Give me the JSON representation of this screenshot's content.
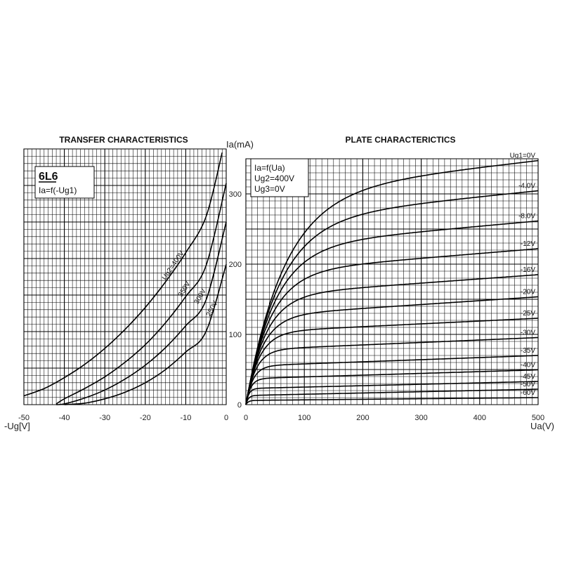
{
  "chart_data": [
    {
      "type": "line",
      "title": "TRANSFER CHARACTERISTICS",
      "xlabel": "-Ug[V]",
      "ylabel": "",
      "xlim": [
        -50,
        0
      ],
      "ylim": [
        0,
        350
      ],
      "x_ticks": [
        "-50",
        "-40",
        "-30",
        "-20",
        "-10",
        "0"
      ],
      "grid": true,
      "info_box": {
        "tube": "6L6",
        "formula": "Ia=f(-Ug1)"
      },
      "series": [
        {
          "name": "Ug2=400V",
          "points": [
            [
              -50,
              12
            ],
            [
              -45,
              22
            ],
            [
              -40,
              37
            ],
            [
              -35,
              55
            ],
            [
              -30,
              77
            ],
            [
              -25,
              103
            ],
            [
              -20,
              133
            ],
            [
              -15,
              168
            ],
            [
              -10,
              208
            ],
            [
              -5,
              257
            ],
            [
              -1,
              345
            ]
          ]
        },
        {
          "name": "350V",
          "points": [
            [
              -42,
              1
            ],
            [
              -40,
              8
            ],
            [
              -35,
              22
            ],
            [
              -30,
              38
            ],
            [
              -25,
              58
            ],
            [
              -20,
              82
            ],
            [
              -15,
              112
            ],
            [
              -10,
              148
            ],
            [
              -5,
              190
            ],
            [
              0,
              303
            ]
          ]
        },
        {
          "name": "300V",
          "points": [
            [
              -42,
              0
            ],
            [
              -40,
              1
            ],
            [
              -35,
              9
            ],
            [
              -30,
              20
            ],
            [
              -25,
              35
            ],
            [
              -20,
              54
            ],
            [
              -15,
              78
            ],
            [
              -10,
              108
            ],
            [
              -5,
              143
            ],
            [
              0,
              250
            ]
          ]
        },
        {
          "name": "250V",
          "points": [
            [
              -40,
              0
            ],
            [
              -35,
              2
            ],
            [
              -30,
              8
            ],
            [
              -25,
              17
            ],
            [
              -20,
              30
            ],
            [
              -15,
              48
            ],
            [
              -10,
              72
            ],
            [
              -5,
              100
            ],
            [
              0,
              192
            ]
          ]
        }
      ]
    },
    {
      "type": "line",
      "title": "PLATE CHARACTERICTICS",
      "xlabel": "Ua(V)",
      "ylabel": "Ia(mA)",
      "xlim": [
        0,
        500
      ],
      "ylim": [
        0,
        350
      ],
      "x_ticks": [
        "0",
        "100",
        "200",
        "300",
        "400",
        "500"
      ],
      "y_ticks": [
        "0",
        "100",
        "200",
        "300"
      ],
      "grid": true,
      "info_box": {
        "lines": [
          "Ia=f(Ua)",
          "Ug2=400V",
          "Ug3=0V"
        ]
      },
      "series": [
        {
          "name": "Ug1=0V",
          "sat": 300,
          "slope": 0.095
        },
        {
          "name": "-4.0V",
          "sat": 262,
          "slope": 0.085
        },
        {
          "name": "-8.0V",
          "sat": 224,
          "slope": 0.075
        },
        {
          "name": "-12V",
          "sat": 188,
          "slope": 0.068
        },
        {
          "name": "-16V",
          "sat": 155,
          "slope": 0.06
        },
        {
          "name": "-20V",
          "sat": 126,
          "slope": 0.055
        },
        {
          "name": "-25V",
          "sat": 103,
          "slope": 0.04
        },
        {
          "name": "-30V",
          "sat": 78,
          "slope": 0.035
        },
        {
          "name": "-35V",
          "sat": 55,
          "slope": 0.03
        },
        {
          "name": "-40V",
          "sat": 37,
          "slope": 0.025
        },
        {
          "name": "-45V",
          "sat": 23,
          "slope": 0.02
        },
        {
          "name": "-50V",
          "sat": 13,
          "slope": 0.018
        },
        {
          "name": "-60V",
          "sat": 6,
          "slope": 0.008
        }
      ]
    }
  ]
}
